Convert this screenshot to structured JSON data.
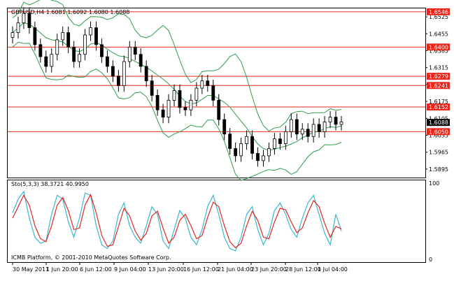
{
  "header": {
    "symbol_info": "GBPUSD,H4  1.6081 1.6092 1.6080 1.6088",
    "osc_info": "Sto(5,3,3) 38.3721 40.9950",
    "copyright": "ICMB Platform, © 2001-2010 MetaQuotes Software Corp."
  },
  "colors": {
    "candle": "#000000",
    "bollinger": "#2e9e4a",
    "level_line": "#e8261c",
    "stoch_main": "#3ab7d3",
    "stoch_signal": "#e8261c",
    "current_price_bg": "#000000"
  },
  "price_axis": {
    "min": 1.586,
    "max": 1.656,
    "ticks": [
      "1.6525",
      "1.6455",
      "1.6385",
      "1.6315",
      "1.6245",
      "1.6175",
      "1.6105",
      "1.6035",
      "1.5965",
      "1.5895"
    ]
  },
  "levels": [
    {
      "label": "1.6546",
      "value": 1.6546
    },
    {
      "label": "1.6400",
      "value": 1.64
    },
    {
      "label": "1.6279",
      "value": 1.6279
    },
    {
      "label": "1.6241",
      "value": 1.6241
    },
    {
      "label": "1.6152",
      "value": 1.6152
    },
    {
      "label": "1.6050",
      "value": 1.605
    }
  ],
  "current_price": {
    "label": "1.6088",
    "value": 1.6088
  },
  "osc_axis": {
    "top_label": "100",
    "bottom_label": "0"
  },
  "time_axis": {
    "labels": [
      "30 May 2011",
      "1 Jun 20:00",
      "6 Jun 12:00",
      "9 Jun 04:00",
      "13 Jun 20:00",
      "16 Jun 12:00",
      "21 Jun 04:00",
      "23 Jun 20:00",
      "28 Jun 12:00",
      "1 Jul 04:00"
    ]
  },
  "chart_data": {
    "type": "line",
    "series": [
      {
        "values": [
          1.646,
          1.65,
          1.654,
          1.648,
          1.641,
          1.636,
          1.632,
          1.637,
          1.643,
          1.646,
          1.64,
          1.634,
          1.637,
          1.645,
          1.648,
          1.641,
          1.636,
          1.632,
          1.628,
          1.624,
          1.634,
          1.64,
          1.637,
          1.632,
          1.626,
          1.62,
          1.614,
          1.611,
          1.618,
          1.622,
          1.615,
          1.614,
          1.618,
          1.623,
          1.626,
          1.624,
          1.618,
          1.61,
          1.604,
          1.598,
          1.595,
          1.6,
          1.603,
          1.596,
          1.593,
          1.595,
          1.598,
          1.602,
          1.6,
          1.605,
          1.61,
          1.604,
          1.606,
          1.603,
          1.608,
          1.605,
          1.609,
          1.611,
          1.608,
          1.609
        ]
      },
      {
        "values": [
          62,
          80,
          90,
          55,
          30,
          22,
          25,
          60,
          85,
          80,
          50,
          30,
          55,
          88,
          85,
          45,
          20,
          15,
          25,
          60,
          75,
          45,
          30,
          22,
          45,
          70,
          60,
          25,
          15,
          40,
          65,
          55,
          30,
          20,
          40,
          70,
          85,
          60,
          30,
          15,
          12,
          30,
          60,
          70,
          40,
          20,
          35,
          65,
          75,
          60,
          40,
          30,
          55,
          75,
          85,
          60,
          35,
          20,
          60,
          38
        ]
      },
      {
        "values": [
          55,
          70,
          85,
          72,
          45,
          28,
          24,
          45,
          72,
          82,
          65,
          40,
          42,
          72,
          86,
          62,
          32,
          18,
          20,
          44,
          68,
          58,
          38,
          26,
          35,
          58,
          64,
          42,
          22,
          30,
          52,
          60,
          45,
          28,
          32,
          56,
          76,
          70,
          45,
          24,
          16,
          22,
          45,
          64,
          52,
          30,
          28,
          50,
          68,
          66,
          50,
          36,
          42,
          62,
          78,
          70,
          48,
          30,
          44,
          41
        ]
      }
    ]
  }
}
